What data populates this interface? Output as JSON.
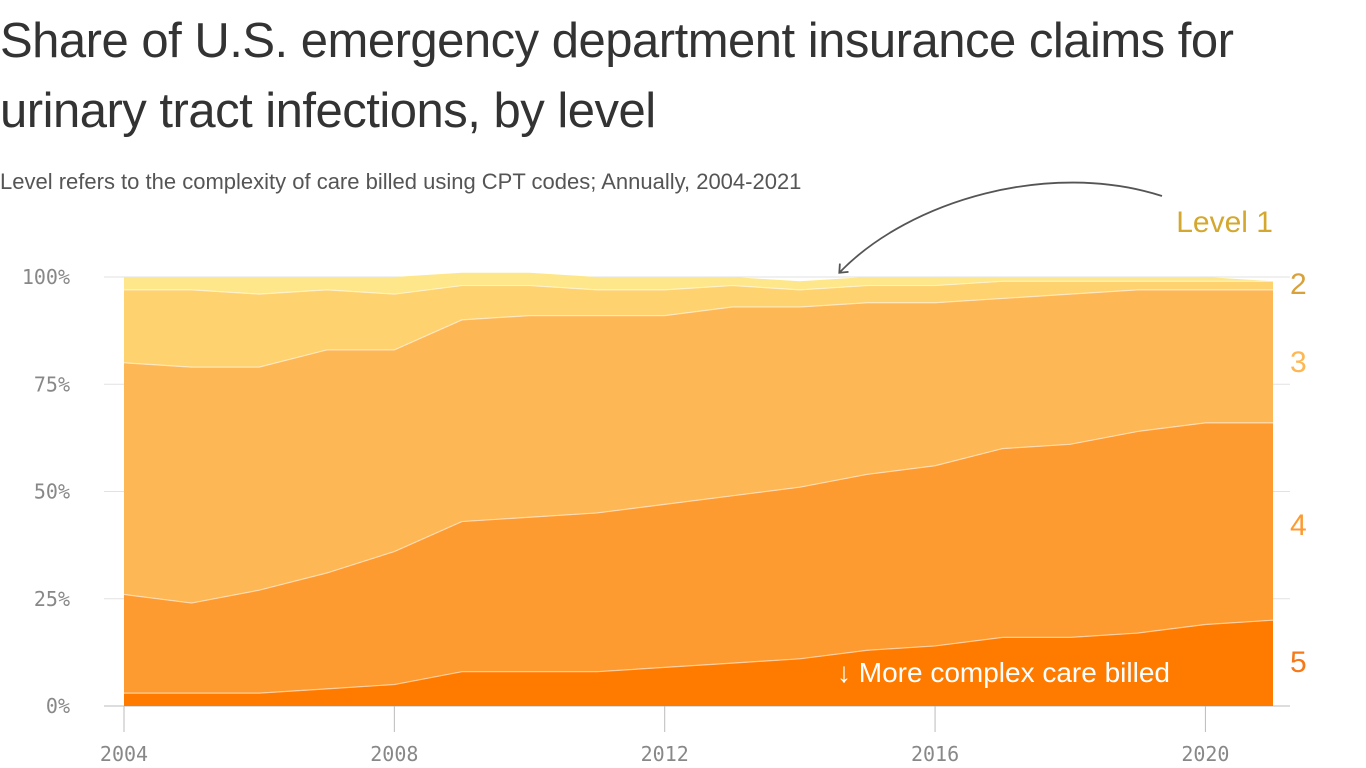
{
  "title": "Share of U.S. emergency department insurance claims for urinary tract infections, by level",
  "subtitle": "Level refers to the complexity of care billed using CPT codes; Annually, 2004-2021",
  "chart_data": {
    "type": "area",
    "stacked": true,
    "x": [
      2004,
      2005,
      2006,
      2007,
      2008,
      2009,
      2010,
      2011,
      2012,
      2013,
      2014,
      2015,
      2016,
      2017,
      2018,
      2019,
      2020,
      2021
    ],
    "x_ticks": [
      "2004",
      "2008",
      "2012",
      "2016",
      "2020"
    ],
    "y_ticks": [
      "0%",
      "25%",
      "50%",
      "75%",
      "100%"
    ],
    "ylim": [
      0,
      100
    ],
    "series": [
      {
        "name": "5",
        "color": "#ff7b00",
        "values": [
          3,
          3,
          3,
          4,
          5,
          8,
          8,
          8,
          9,
          10,
          11,
          13,
          14,
          16,
          16,
          17,
          19,
          20
        ]
      },
      {
        "name": "4",
        "color": "#fd9a30",
        "values": [
          23,
          21,
          24,
          27,
          31,
          35,
          36,
          37,
          38,
          39,
          40,
          41,
          42,
          44,
          45,
          47,
          47,
          46
        ]
      },
      {
        "name": "3",
        "color": "#fdb755",
        "values": [
          54,
          55,
          52,
          52,
          47,
          47,
          47,
          46,
          44,
          44,
          42,
          40,
          38,
          35,
          35,
          33,
          31,
          31
        ]
      },
      {
        "name": "2",
        "color": "#fdd26f",
        "values": [
          17,
          18,
          17,
          14,
          13,
          8,
          7,
          6,
          6,
          5,
          4,
          4,
          4,
          4,
          3,
          2,
          2,
          2
        ]
      },
      {
        "name": "1",
        "color": "#fde78a",
        "values": [
          3,
          3,
          4,
          3,
          4,
          3,
          3,
          3,
          3,
          2,
          2,
          2,
          2,
          1,
          1,
          1,
          1,
          0
        ]
      }
    ],
    "level_labels": [
      {
        "text": "Level 1",
        "color": "#d4a82e"
      },
      {
        "text": "2",
        "color": "#d9a13a"
      },
      {
        "text": "3",
        "color": "#fdb755"
      },
      {
        "text": "4",
        "color": "#fd9a30"
      },
      {
        "text": "5",
        "color": "#f47a1a"
      }
    ],
    "annotation": "↓ More complex care billed"
  }
}
